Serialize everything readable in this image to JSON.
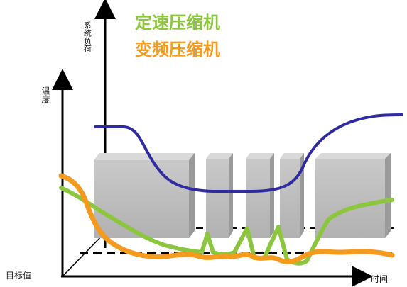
{
  "labels": {
    "system_load": "系统负荷",
    "temperature": "温度",
    "target_value": "目标值",
    "time": "时间"
  },
  "legend": {
    "fixed_speed": "定速压缩机",
    "variable_speed": "变频压缩机"
  },
  "colors": {
    "fixed_speed": "#8cc63f",
    "variable_speed": "#f39a1f",
    "system_load": "#2f2aa0",
    "blocks": "#bdbdbd"
  }
}
